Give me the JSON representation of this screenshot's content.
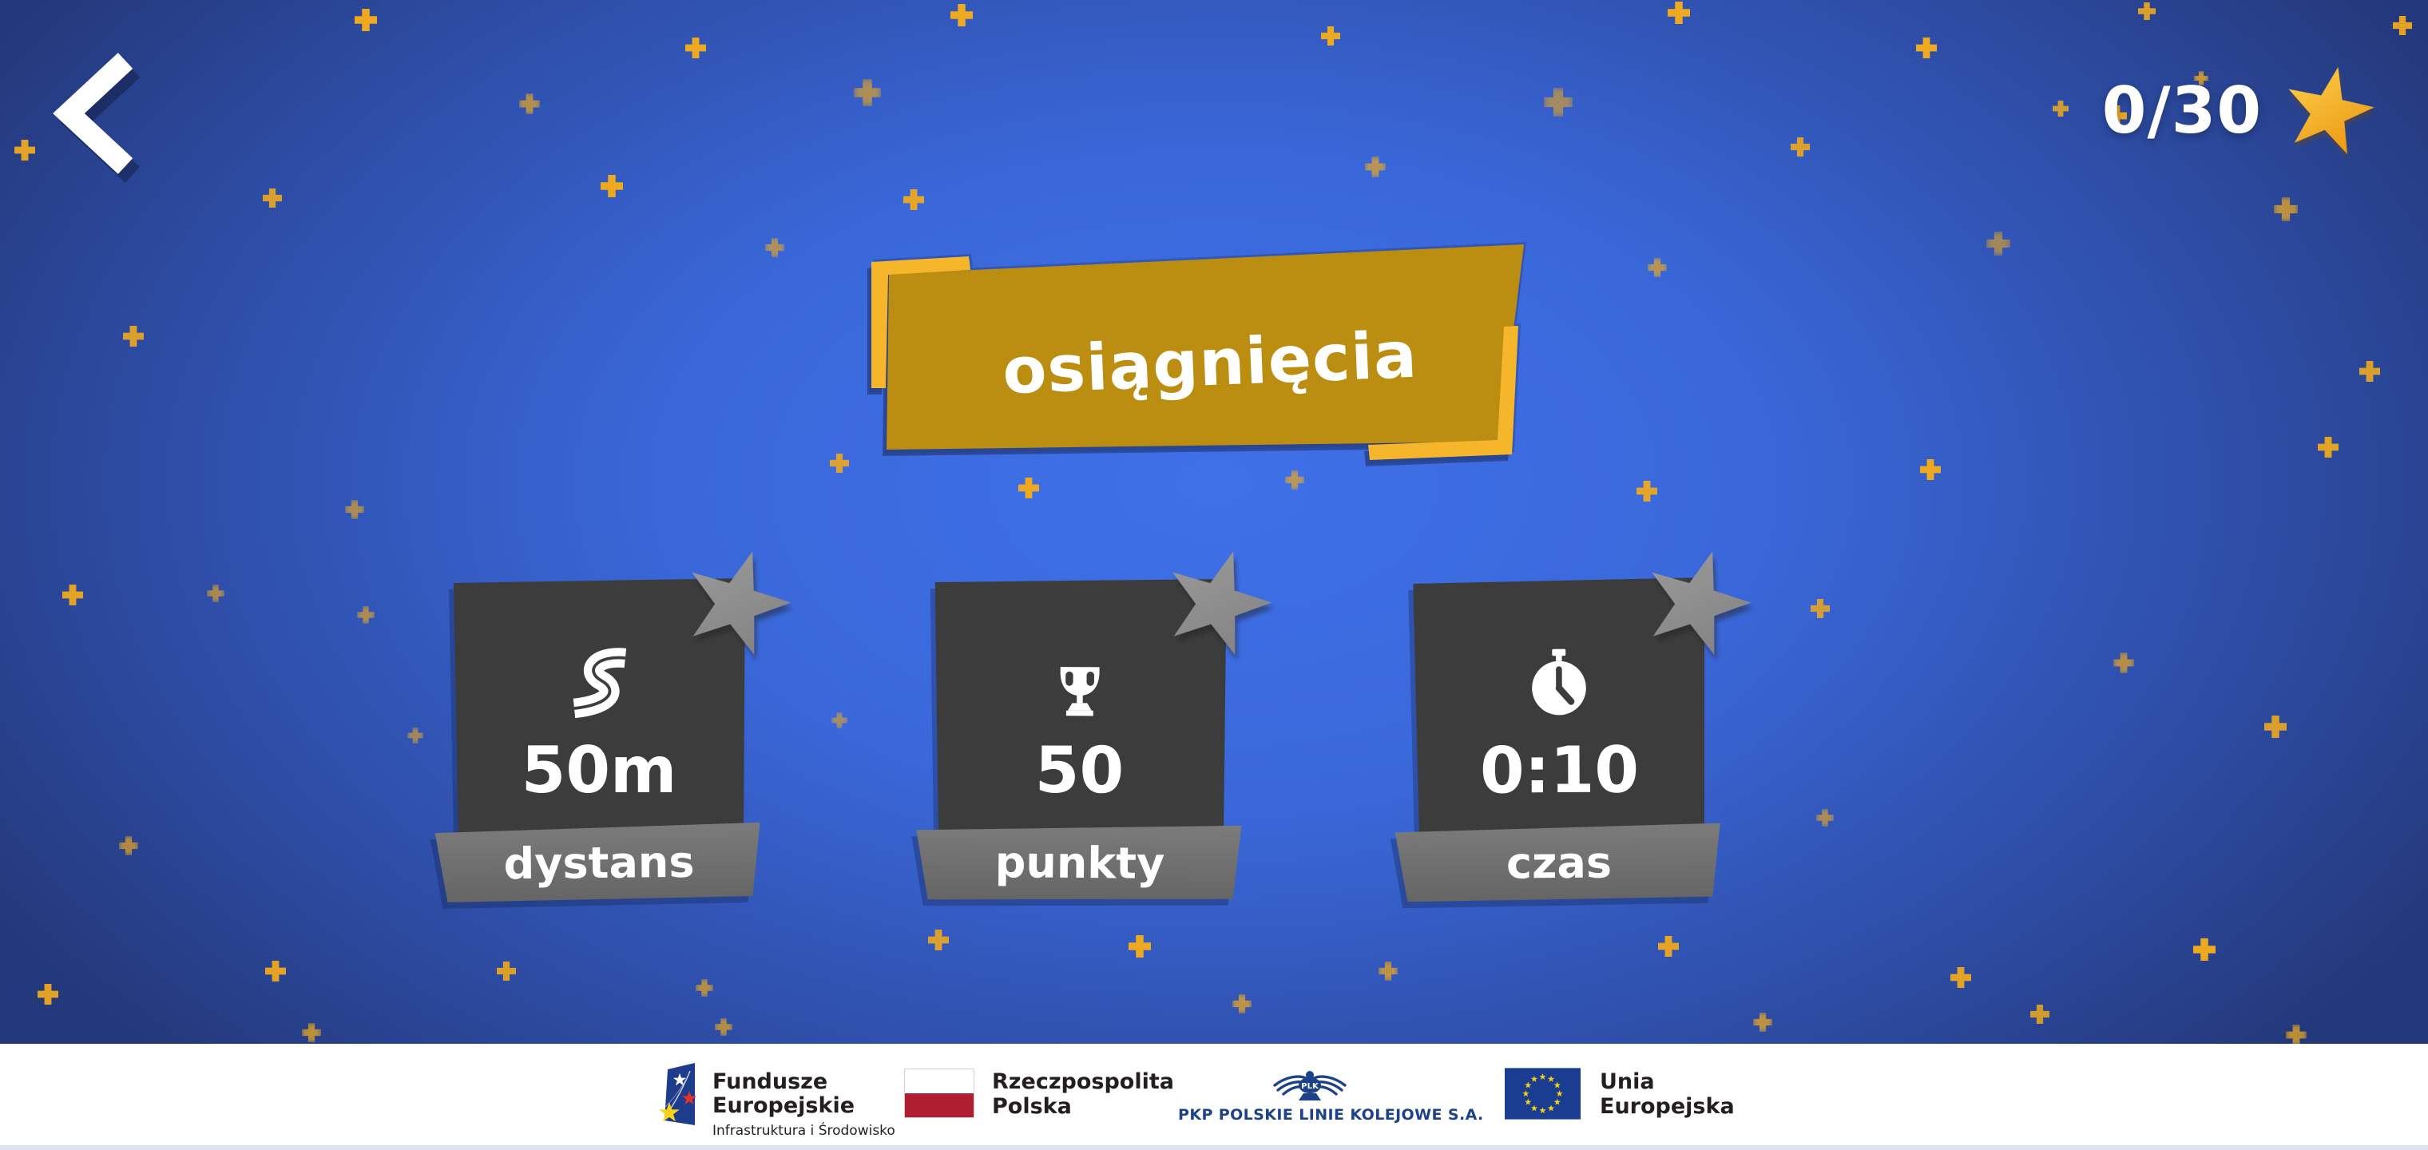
{
  "theme": {
    "bg_center": "#3f70e8",
    "bg_edge": "#24397b",
    "sparkle": "#eda920",
    "banner_gold": "#bb8d10",
    "banner_bright": "#f5b62b",
    "card_dark": "#3c3c3c",
    "card_label_bg": "#707070",
    "star_gray": "#8d8d8d",
    "star_gold": "#f2a81d",
    "flag_red": "#b01e32",
    "pkp_blue": "#1d4289",
    "eu_flag_blue": "#1b3d91",
    "footer_bg": "#ffffff"
  },
  "header": {
    "back_icon": "chevron-left-icon",
    "score": "0/30",
    "score_icon": "star-icon"
  },
  "banner": {
    "title": "osiągnięcia"
  },
  "achievements": [
    {
      "icon": "road-icon",
      "value": "50m",
      "label": "dystans",
      "star_icon": "star-icon"
    },
    {
      "icon": "trophy-icon",
      "value": "50",
      "label": "punkty",
      "star_icon": "star-icon"
    },
    {
      "icon": "stopwatch-icon",
      "value": "0:10",
      "label": "czas",
      "star_icon": "star-icon"
    }
  ],
  "footer": {
    "fundusze": {
      "line1": "Fundusze",
      "line2": "Europejskie",
      "subtitle": "Infrastruktura i Środowisko"
    },
    "poland": {
      "line1": "Rzeczpospolita",
      "line2": "Polska"
    },
    "pkp": {
      "emblem_text": "PLK",
      "label": "PKP POLSKIE LINIE KOLEJOWE S.A."
    },
    "eu": {
      "label": "Unia Europejska"
    }
  }
}
